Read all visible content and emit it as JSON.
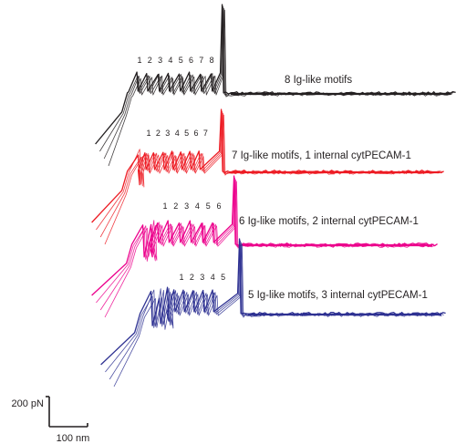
{
  "chart_data": {
    "type": "line",
    "title": "",
    "xlabel": "",
    "ylabel": "",
    "grid": false,
    "scale_bars": {
      "force_label": "200 pN",
      "distance_label": "100 nm"
    },
    "series": [
      {
        "name": "8 Ig-like motifs",
        "color": "#231f20",
        "ig_peaks": 8,
        "internal_cytpecam": 0,
        "peak_labels": [
          "1",
          "2",
          "3",
          "4",
          "5",
          "6",
          "7",
          "8"
        ]
      },
      {
        "name": "7 Ig-like motifs, 1 internal cytPECAM-1",
        "color": "#ed1c24",
        "ig_peaks": 7,
        "internal_cytpecam": 1,
        "peak_labels": [
          "1",
          "2",
          "3",
          "4",
          "5",
          "6",
          "7"
        ]
      },
      {
        "name": "6 Ig-like motifs, 2 internal cytPECAM-1",
        "color": "#ec008c",
        "ig_peaks": 6,
        "internal_cytpecam": 2,
        "peak_labels": [
          "1",
          "2",
          "3",
          "4",
          "5",
          "6"
        ]
      },
      {
        "name": "5 Ig-like motifs, 3 internal cytPECAM-1",
        "color": "#2e3192",
        "ig_peaks": 5,
        "internal_cytpecam": 3,
        "peak_labels": [
          "1",
          "2",
          "3",
          "4",
          "5"
        ]
      }
    ]
  }
}
